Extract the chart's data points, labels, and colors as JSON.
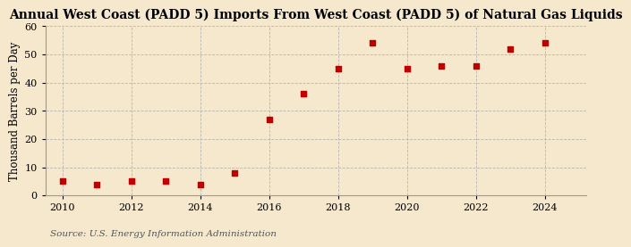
{
  "title": "Annual West Coast (PADD 5) Imports From West Coast (PADD 5) of Natural Gas Liquids",
  "ylabel": "Thousand Barrels per Day",
  "source": "Source: U.S. Energy Information Administration",
  "background_color": "#f5e8cc",
  "plot_background_color": "#f5e8cc",
  "marker_color": "#c00000",
  "years": [
    2010,
    2011,
    2012,
    2013,
    2014,
    2015,
    2016,
    2017,
    2018,
    2019,
    2020,
    2021,
    2022,
    2023,
    2024
  ],
  "values": [
    5.0,
    4.0,
    5.0,
    5.0,
    4.0,
    8.0,
    27.0,
    36.0,
    45.0,
    54.0,
    45.0,
    46.0,
    46.0,
    52.0,
    54.0
  ],
  "xlim": [
    2009.5,
    2025.2
  ],
  "ylim": [
    0,
    60
  ],
  "yticks": [
    0,
    10,
    20,
    30,
    40,
    50,
    60
  ],
  "xticks": [
    2010,
    2012,
    2014,
    2016,
    2018,
    2020,
    2022,
    2024
  ],
  "grid_color": "#aaaaaa",
  "title_fontsize": 10.0,
  "label_fontsize": 8.5,
  "tick_fontsize": 8.0,
  "source_fontsize": 7.5
}
